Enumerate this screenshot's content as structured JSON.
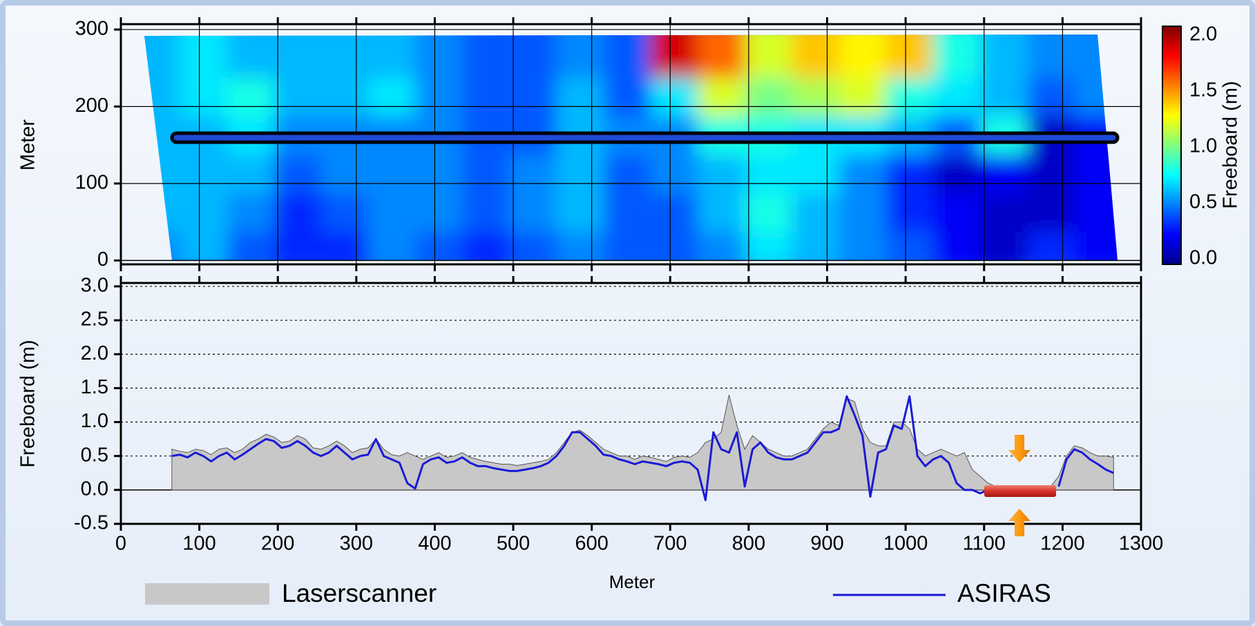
{
  "chart_data": [
    {
      "type": "heatmap",
      "ylabel": "Meter",
      "xlim": [
        0,
        1300
      ],
      "xticks": [
        0,
        100,
        200,
        300,
        400,
        500,
        600,
        700,
        800,
        900,
        1000,
        1100,
        1200,
        1300
      ],
      "ylim": [
        -5,
        307
      ],
      "yticks": [
        0,
        100,
        200,
        300
      ],
      "colorbar": {
        "label": "Freeboard (m)",
        "clim": [
          -0.05,
          2.08
        ],
        "ticks": [
          {
            "value": 0,
            "label": "0.0"
          },
          0.5,
          {
            "value": 1,
            "label": "1.0"
          },
          1.5,
          {
            "value": 2,
            "label": "2.0"
          }
        ]
      },
      "grid": {
        "x": [
          60,
          120,
          180,
          240,
          300,
          360,
          420,
          480,
          540,
          600,
          660,
          720,
          780,
          840,
          900,
          960,
          1020,
          1080,
          1140,
          1200,
          1260
        ],
        "y": [
          25,
          75,
          125,
          175,
          225,
          275
        ],
        "values": [
          [
            0.5,
            0.6,
            0.4,
            0.3,
            0.3,
            0.5,
            0.4,
            0.3,
            0.4,
            0.5,
            0.4,
            0.4,
            0.5,
            0.7,
            0.6,
            0.5,
            0.4,
            0.2,
            0.1,
            0.3,
            0.2
          ],
          [
            0.6,
            0.6,
            0.5,
            0.3,
            0.4,
            0.5,
            0.5,
            0.4,
            0.5,
            0.6,
            0.4,
            0.4,
            0.6,
            0.8,
            0.6,
            0.5,
            0.3,
            0.2,
            0.1,
            0.1,
            0.2
          ],
          [
            0.6,
            0.6,
            0.6,
            0.4,
            0.5,
            0.5,
            0.5,
            0.4,
            0.5,
            0.6,
            0.4,
            0.5,
            0.6,
            0.7,
            0.7,
            0.5,
            0.3,
            0.1,
            0.2,
            0.1,
            0.2
          ],
          [
            0.6,
            0.6,
            0.7,
            0.5,
            0.5,
            0.5,
            0.5,
            0.4,
            0.4,
            0.6,
            0.5,
            0.5,
            0.8,
            0.8,
            0.7,
            0.7,
            0.6,
            0.4,
            0.8,
            0.1,
            0.2
          ],
          [
            0.6,
            0.7,
            0.8,
            0.6,
            0.6,
            0.7,
            0.5,
            0.4,
            0.4,
            0.6,
            0.4,
            0.7,
            1.2,
            1.0,
            1.1,
            1.2,
            0.8,
            0.7,
            0.6,
            0.4,
            0.5
          ],
          [
            0.6,
            0.7,
            0.6,
            0.6,
            0.6,
            0.6,
            0.5,
            0.4,
            0.4,
            0.5,
            0.4,
            1.9,
            1.6,
            1.2,
            1.4,
            1.3,
            1.4,
            0.8,
            0.6,
            0.5,
            0.5
          ]
        ]
      }
    },
    {
      "type": "area_line",
      "xlabel": "Meter",
      "ylabel": "Freeboard (m)",
      "xlim": [
        0,
        1300
      ],
      "xticks": [
        0,
        100,
        200,
        300,
        400,
        500,
        600,
        700,
        800,
        900,
        1000,
        1100,
        1200,
        1300
      ],
      "ylim": [
        -0.5,
        3.05
      ],
      "yticks": [
        -0.5,
        {
          "value": 0,
          "label": "0.0"
        },
        0.5,
        {
          "value": 1,
          "label": "1.0"
        },
        1.5,
        {
          "value": 2,
          "label": "2.0"
        },
        2.5,
        {
          "value": 3,
          "label": "3.0"
        }
      ],
      "grid": true,
      "x": [
        65,
        75,
        85,
        95,
        105,
        115,
        125,
        135,
        145,
        155,
        165,
        175,
        185,
        195,
        205,
        215,
        225,
        235,
        245,
        255,
        265,
        275,
        285,
        295,
        305,
        315,
        325,
        335,
        345,
        355,
        365,
        375,
        385,
        395,
        405,
        415,
        425,
        435,
        445,
        455,
        465,
        475,
        485,
        495,
        505,
        515,
        525,
        535,
        545,
        555,
        565,
        575,
        585,
        595,
        605,
        615,
        625,
        635,
        645,
        655,
        665,
        675,
        685,
        695,
        705,
        715,
        725,
        735,
        745,
        755,
        765,
        775,
        785,
        795,
        805,
        815,
        825,
        835,
        845,
        855,
        865,
        875,
        885,
        895,
        905,
        915,
        925,
        935,
        945,
        955,
        965,
        975,
        985,
        995,
        1005,
        1015,
        1025,
        1035,
        1045,
        1055,
        1065,
        1075,
        1085,
        1095,
        1105,
        1115,
        1125,
        1135,
        1145,
        1155,
        1165,
        1175,
        1185,
        1195,
        1205,
        1215,
        1225,
        1235,
        1245,
        1255,
        1265
      ],
      "series": [
        {
          "name": "Laserscanner",
          "color": "#c8c8c8",
          "values": [
            0.6,
            0.57,
            0.55,
            0.6,
            0.58,
            0.52,
            0.6,
            0.62,
            0.55,
            0.6,
            0.7,
            0.75,
            0.82,
            0.78,
            0.7,
            0.72,
            0.8,
            0.75,
            0.62,
            0.6,
            0.65,
            0.72,
            0.65,
            0.55,
            0.6,
            0.62,
            0.75,
            0.6,
            0.52,
            0.5,
            0.55,
            0.5,
            0.45,
            0.5,
            0.55,
            0.48,
            0.5,
            0.55,
            0.48,
            0.45,
            0.42,
            0.4,
            0.38,
            0.38,
            0.36,
            0.38,
            0.4,
            0.42,
            0.45,
            0.55,
            0.7,
            0.85,
            0.88,
            0.8,
            0.7,
            0.6,
            0.55,
            0.5,
            0.5,
            0.45,
            0.5,
            0.48,
            0.45,
            0.42,
            0.48,
            0.5,
            0.48,
            0.55,
            0.7,
            0.75,
            0.85,
            1.4,
            0.95,
            0.6,
            0.8,
            0.7,
            0.6,
            0.55,
            0.5,
            0.5,
            0.55,
            0.6,
            0.75,
            0.9,
            1.0,
            0.95,
            1.35,
            1.3,
            0.9,
            0.7,
            0.65,
            0.65,
            1.0,
            1.0,
            0.9,
            0.6,
            0.5,
            0.55,
            0.6,
            0.55,
            0.5,
            0.55,
            0.3,
            0.2,
            0.1,
            0.05,
            0.03,
            0.02,
            0.02,
            0.02,
            0.02,
            0.02,
            0.05,
            0.2,
            0.5,
            0.65,
            0.62,
            0.55,
            0.5,
            0.5,
            0.48
          ]
        },
        {
          "name": "ASIRAS",
          "color": "#1a1ad6",
          "values": [
            0.5,
            0.52,
            0.48,
            0.55,
            0.5,
            0.42,
            0.5,
            0.55,
            0.45,
            0.52,
            0.6,
            0.68,
            0.75,
            0.72,
            0.62,
            0.65,
            0.72,
            0.65,
            0.55,
            0.5,
            0.55,
            0.65,
            0.55,
            0.45,
            0.5,
            0.52,
            0.75,
            0.5,
            0.45,
            0.4,
            0.1,
            0.02,
            0.38,
            0.45,
            0.48,
            0.4,
            0.42,
            0.48,
            0.4,
            0.35,
            0.35,
            0.32,
            0.3,
            0.28,
            0.28,
            0.3,
            0.32,
            0.35,
            0.4,
            0.5,
            0.65,
            0.85,
            0.85,
            0.75,
            0.65,
            0.52,
            0.5,
            0.45,
            0.42,
            0.38,
            0.42,
            0.4,
            0.38,
            0.35,
            0.4,
            0.42,
            0.4,
            0.3,
            -0.15,
            0.85,
            0.6,
            0.55,
            0.85,
            0.05,
            0.6,
            0.7,
            0.55,
            0.48,
            0.45,
            0.45,
            0.5,
            0.55,
            0.7,
            0.85,
            0.85,
            0.9,
            1.38,
            1.1,
            0.8,
            -0.1,
            0.55,
            0.6,
            0.95,
            0.9,
            1.38,
            0.5,
            0.35,
            0.45,
            0.5,
            0.4,
            0.1,
            0.0,
            0.0,
            -0.05,
            0.0,
            null,
            null,
            null,
            null,
            null,
            null,
            null,
            null,
            0.05,
            0.45,
            0.6,
            0.55,
            0.45,
            0.38,
            0.3,
            0.25
          ]
        }
      ]
    }
  ]
}
